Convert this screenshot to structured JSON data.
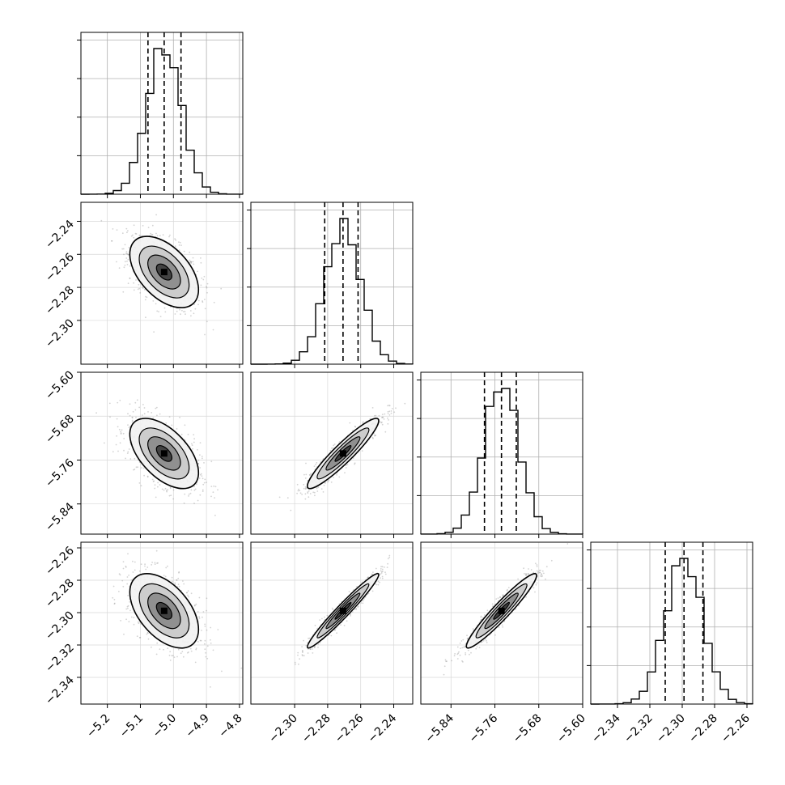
{
  "chart_data": {
    "type": "corner",
    "parameters": 4,
    "grid": true,
    "params": [
      {
        "index": 0,
        "range": [
          -5.28,
          -4.79
        ],
        "ticks": [
          "−5.2",
          "−5.1",
          "−5.0",
          "−4.9",
          "−4.8"
        ],
        "tick_values": [
          -5.2,
          -5.1,
          -5.0,
          -4.9,
          -4.8
        ],
        "mean": -5.028,
        "sd": 0.052,
        "quantiles": [
          -5.077,
          -5.028,
          -4.977
        ]
      },
      {
        "index": 1,
        "range": [
          -2.3265,
          -2.2285
        ],
        "ticks": [
          "−2.30",
          "−2.28",
          "−2.26",
          "−2.24"
        ],
        "tick_values": [
          -2.3,
          -2.28,
          -2.26,
          -2.24
        ],
        "mean": -2.2707,
        "sd": 0.0108,
        "quantiles": [
          -2.2818,
          -2.2707,
          -2.2616
        ]
      },
      {
        "index": 2,
        "range": [
          -5.895,
          -5.6
        ],
        "ticks": [
          "−5.84",
          "−5.76",
          "−5.68",
          "−5.60"
        ],
        "tick_values": [
          -5.84,
          -5.76,
          -5.68,
          -5.6
        ],
        "mean": -5.748,
        "sd": 0.032,
        "quantiles": [
          -5.779,
          -5.748,
          -5.721
        ]
      },
      {
        "index": 3,
        "range": [
          -2.3565,
          -2.2565
        ],
        "ticks": [
          "−2.34",
          "−2.32",
          "−2.30",
          "−2.28",
          "−2.26"
        ],
        "tick_values": [
          -2.34,
          -2.32,
          -2.3,
          -2.28,
          -2.26
        ],
        "mean": -2.2989,
        "sd": 0.0115,
        "quantiles": [
          -2.3105,
          -2.2989,
          -2.2872
        ]
      }
    ],
    "left_axis_ticks": [
      {
        "row": 1,
        "ticks": [
          "−2.24",
          "−2.26",
          "−2.28",
          "−2.30"
        ],
        "tick_values": [
          -2.24,
          -2.26,
          -2.28,
          -2.3
        ]
      },
      {
        "row": 2,
        "ticks": [
          "−5.60",
          "−5.68",
          "−5.76",
          "−5.84"
        ],
        "tick_values": [
          -5.6,
          -5.68,
          -5.76,
          -5.84
        ]
      },
      {
        "row": 3,
        "ticks": [
          "−2.26",
          "−2.28",
          "−2.30",
          "−2.32",
          "−2.34"
        ],
        "tick_values": [
          -2.26,
          -2.28,
          -2.3,
          -2.32,
          -2.34
        ]
      }
    ],
    "correlations": [
      {
        "x": 0,
        "y": 1,
        "rho": -0.5
      },
      {
        "x": 0,
        "y": 2,
        "rho": -0.55
      },
      {
        "x": 1,
        "y": 2,
        "rho": 0.93
      },
      {
        "x": 0,
        "y": 3,
        "rho": -0.5
      },
      {
        "x": 1,
        "y": 3,
        "rho": 0.97
      },
      {
        "x": 2,
        "y": 3,
        "rho": 0.95
      }
    ],
    "colors": {
      "axes": "#000000",
      "grid": "#b0b0b0",
      "points": "#808080",
      "contour": "#000000"
    }
  }
}
